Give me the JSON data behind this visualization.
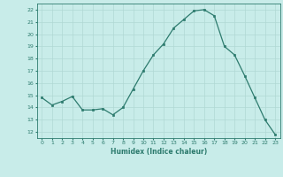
{
  "x": [
    0,
    1,
    2,
    3,
    4,
    5,
    6,
    7,
    8,
    9,
    10,
    11,
    12,
    13,
    14,
    15,
    16,
    17,
    18,
    19,
    20,
    21,
    22,
    23
  ],
  "y": [
    14.8,
    14.2,
    14.5,
    14.9,
    13.8,
    13.8,
    13.9,
    13.4,
    14.0,
    15.5,
    17.0,
    18.3,
    19.2,
    20.5,
    21.2,
    21.9,
    22.0,
    21.5,
    19.0,
    18.3,
    16.6,
    14.8,
    13.0,
    11.8
  ],
  "xlabel": "Humidex (Indice chaleur)",
  "ylabel_ticks": [
    12,
    13,
    14,
    15,
    16,
    17,
    18,
    19,
    20,
    21,
    22
  ],
  "ylim": [
    11.5,
    22.5
  ],
  "xlim": [
    -0.5,
    23.5
  ],
  "line_color": "#2d7b6e",
  "marker_color": "#2d7b6e",
  "bg_color": "#c8ece9",
  "grid_color": "#b0d8d4",
  "text_color": "#2d7b6e"
}
